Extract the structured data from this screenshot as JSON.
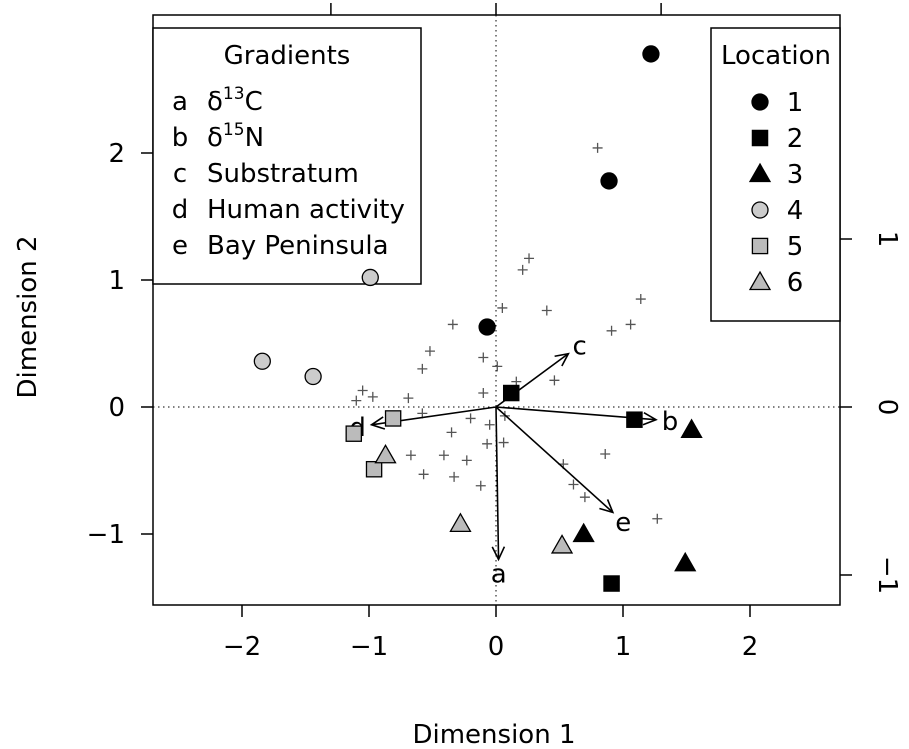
{
  "chart_data": {
    "type": "scatter",
    "xlabel": "Dimension 1",
    "ylabel": "Dimension 2",
    "xlim": [
      -2.7,
      2.7
    ],
    "ylim": [
      -1.55,
      3.0
    ],
    "x_ticks": [
      {
        "value": -2,
        "label": "−2"
      },
      {
        "value": -1,
        "label": "−1"
      },
      {
        "value": 0,
        "label": "0"
      },
      {
        "value": 1,
        "label": "1"
      },
      {
        "value": 2,
        "label": "2"
      }
    ],
    "y_ticks": [
      {
        "value": -1,
        "label": "−1"
      },
      {
        "value": 0,
        "label": "0"
      },
      {
        "value": 1,
        "label": "1"
      },
      {
        "value": 2,
        "label": "2"
      }
    ],
    "top_axis_ticks": [
      -1.3,
      0,
      1.3
    ],
    "right_axis": {
      "ticks": [
        {
          "value": -1,
          "label": "−1"
        },
        {
          "value": 0,
          "label": "0"
        },
        {
          "value": 1,
          "label": "1"
        }
      ],
      "scale_per_unit_of_left": 0.756
    },
    "reference_lines": {
      "x": 0,
      "y": 0,
      "style": "dotted"
    },
    "gradients_legend": {
      "title": "Gradients",
      "items": [
        {
          "key": "a",
          "label": "δ",
          "sup": "13",
          "suffix": "C"
        },
        {
          "key": "b",
          "label": "δ",
          "sup": "15",
          "suffix": "N"
        },
        {
          "key": "c",
          "label": "Substratum",
          "sup": "",
          "suffix": ""
        },
        {
          "key": "d",
          "label": "Human activity",
          "sup": "",
          "suffix": ""
        },
        {
          "key": "e",
          "label": "Bay Peninsula",
          "sup": "",
          "suffix": ""
        }
      ]
    },
    "location_legend": {
      "title": "Location",
      "items": [
        {
          "label": "1",
          "shape": "circle",
          "fill": "#000000"
        },
        {
          "label": "2",
          "shape": "square",
          "fill": "#000000"
        },
        {
          "label": "3",
          "shape": "triangle",
          "fill": "#000000"
        },
        {
          "label": "4",
          "shape": "circle",
          "fill": "#cccccc"
        },
        {
          "label": "5",
          "shape": "square",
          "fill": "#bbbbbb"
        },
        {
          "label": "6",
          "shape": "triangle",
          "fill": "#bbbbbb"
        }
      ]
    },
    "series": [
      {
        "location": "1",
        "shape": "circle",
        "fill": "#000000",
        "points": [
          [
            1.22,
            2.78
          ],
          [
            0.89,
            1.78
          ],
          [
            -0.07,
            0.63
          ]
        ]
      },
      {
        "location": "2",
        "shape": "square",
        "fill": "#000000",
        "points": [
          [
            0.12,
            0.11
          ],
          [
            1.09,
            -0.1
          ],
          [
            0.91,
            -1.39
          ]
        ]
      },
      {
        "location": "3",
        "shape": "triangle",
        "fill": "#000000",
        "points": [
          [
            1.54,
            -0.18
          ],
          [
            0.69,
            -1.0
          ],
          [
            1.49,
            -1.23
          ]
        ]
      },
      {
        "location": "4",
        "shape": "circle",
        "fill": "#cccccc",
        "points": [
          [
            -0.99,
            1.02
          ],
          [
            -1.84,
            0.36
          ],
          [
            -1.44,
            0.24
          ]
        ]
      },
      {
        "location": "5",
        "shape": "square",
        "fill": "#bbbbbb",
        "points": [
          [
            -0.81,
            -0.09
          ],
          [
            -1.12,
            -0.21
          ],
          [
            -0.96,
            -0.49
          ]
        ]
      },
      {
        "location": "6",
        "shape": "triangle",
        "fill": "#bbbbbb",
        "points": [
          [
            -0.87,
            -0.38
          ],
          [
            -0.28,
            -0.92
          ],
          [
            0.52,
            -1.09
          ]
        ]
      }
    ],
    "species_plus": [
      [
        0.8,
        2.04
      ],
      [
        0.21,
        1.08
      ],
      [
        0.26,
        1.17
      ],
      [
        0.05,
        0.78
      ],
      [
        0.4,
        0.76
      ],
      [
        1.14,
        0.85
      ],
      [
        1.06,
        0.65
      ],
      [
        0.91,
        0.6
      ],
      [
        -0.34,
        0.65
      ],
      [
        -0.52,
        0.44
      ],
      [
        -0.58,
        0.3
      ],
      [
        -0.1,
        0.39
      ],
      [
        0.01,
        0.32
      ],
      [
        0.46,
        0.21
      ],
      [
        0.16,
        0.2
      ],
      [
        -1.05,
        0.13
      ],
      [
        -1.1,
        0.05
      ],
      [
        -0.97,
        0.08
      ],
      [
        -0.69,
        0.07
      ],
      [
        -0.1,
        0.11
      ],
      [
        -0.58,
        -0.05
      ],
      [
        -0.2,
        -0.09
      ],
      [
        -0.05,
        -0.14
      ],
      [
        0.07,
        -0.07
      ],
      [
        -0.35,
        -0.2
      ],
      [
        -0.07,
        -0.29
      ],
      [
        0.06,
        -0.28
      ],
      [
        -0.67,
        -0.38
      ],
      [
        -0.41,
        -0.38
      ],
      [
        -0.23,
        -0.42
      ],
      [
        0.53,
        -0.45
      ],
      [
        0.86,
        -0.37
      ],
      [
        -0.57,
        -0.53
      ],
      [
        -0.33,
        -0.55
      ],
      [
        -0.12,
        -0.62
      ],
      [
        0.61,
        -0.61
      ],
      [
        0.7,
        -0.71
      ],
      [
        1.27,
        -0.88
      ]
    ],
    "vectors": [
      {
        "key": "a",
        "x": 0.02,
        "y": -1.2
      },
      {
        "key": "b",
        "x": 1.26,
        "y": -0.1
      },
      {
        "key": "c",
        "x": 0.57,
        "y": 0.42
      },
      {
        "key": "d",
        "x": -0.98,
        "y": -0.14
      },
      {
        "key": "e",
        "x": 0.92,
        "y": -0.83
      }
    ]
  }
}
